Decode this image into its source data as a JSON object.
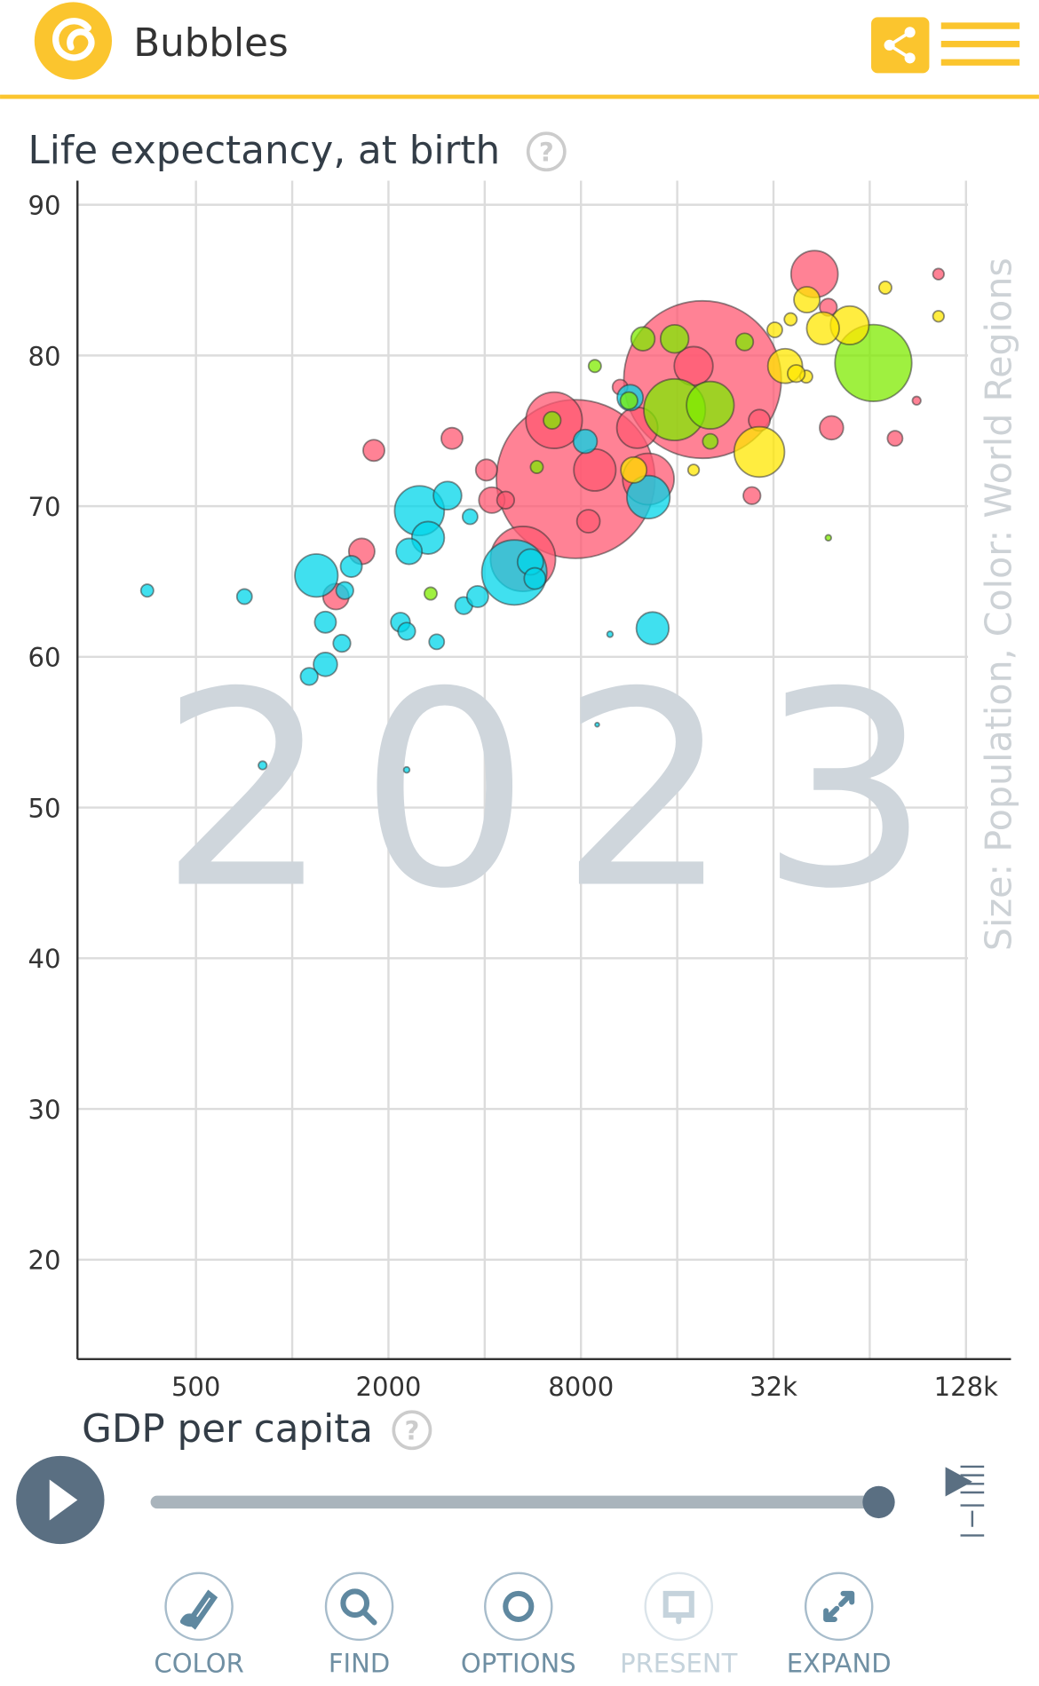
{
  "header": {
    "title": "Bubbles"
  },
  "chart_data": {
    "type": "bubble",
    "y_label": "Life expectancy, at birth",
    "x_label": "GDP per capita",
    "size_color_label": "Size: Population, Color: World Regions",
    "year": 2023,
    "x_scale": "log",
    "xlim": [
      213,
      177000
    ],
    "ylim": [
      13.4,
      91.6
    ],
    "xticks": [
      500,
      2000,
      8000,
      {
        "value": 32000,
        "label": "32k"
      },
      {
        "value": 128000,
        "label": "128k"
      }
    ],
    "xgrid_minor": [
      1000,
      4000,
      16000,
      64000
    ],
    "yticks": [
      20,
      30,
      40,
      50,
      60,
      70,
      80,
      90
    ],
    "grid": true,
    "x": [
      7700,
      19200,
      6590,
      5270,
      43000,
      8440,
      8840,
      12000,
      13000,
      18000,
      4050,
      4210,
      4650,
      1800,
      3160,
      1650,
      1370,
      27400,
      28900,
      48600,
      76800,
      105000,
      89700,
      47500,
      10600,
      4950,
      1190,
      2500,
      1270,
      1270,
      1130,
      1430,
      1530,
      1460,
      2660,
      3060,
      2320,
      2180,
      2280,
      2830,
      3440,
      3800,
      3600,
      5560,
      5740,
      8250,
      13000,
      13400,
      352,
      709,
      808,
      2280,
      8990,
      9860,
      11400,
      65700,
      15700,
      20300,
      12500,
      15700,
      26000,
      11300,
      8840,
      2710,
      6500,
      5820,
      47500,
      20300,
      28900,
      55400,
      34800,
      40700,
      45700,
      11700,
      32300,
      36200,
      71600,
      105000,
      18000,
      40500,
      37700
    ],
    "values": [
      71.8,
      78.4,
      75.7,
      66.5,
      85.4,
      69.0,
      72.4,
      75.2,
      71.8,
      79.3,
      72.4,
      70.4,
      70.4,
      73.7,
      74.5,
      67.0,
      64.0,
      70.7,
      75.7,
      75.2,
      74.5,
      85.4,
      77.0,
      83.2,
      77.9,
      65.6,
      65.4,
      69.7,
      62.3,
      59.5,
      58.7,
      60.9,
      66.0,
      64.4,
      67.9,
      70.7,
      67.0,
      62.3,
      61.7,
      61.0,
      63.4,
      64.0,
      69.3,
      66.3,
      65.2,
      74.3,
      70.6,
      61.9,
      64.4,
      64.0,
      52.8,
      52.5,
      55.5,
      61.5,
      77.2,
      79.5,
      76.4,
      76.7,
      81.1,
      81.1,
      80.9,
      77.0,
      79.3,
      64.2,
      75.7,
      72.6,
      67.9,
      74.3,
      73.6,
      82.0,
      79.3,
      83.7,
      81.8,
      72.4,
      81.7,
      82.4,
      84.5,
      82.6,
      72.4,
      78.6,
      78.8
    ],
    "sizes": [
      1430,
      1410,
      180,
      240,
      125,
      30,
      100,
      95,
      150,
      85,
      26,
      38,
      17,
      26,
      26,
      38,
      38,
      17,
      26,
      32,
      13,
      7,
      4,
      17,
      13,
      240,
      105,
      140,
      26,
      32,
      17,
      17,
      26,
      17,
      60,
      45,
      38,
      21,
      17,
      13,
      17,
      26,
      13,
      38,
      26,
      32,
      105,
      60,
      9,
      13,
      4,
      2,
      1,
      2,
      38,
      335,
      215,
      128,
      32,
      45,
      17,
      17,
      9,
      9,
      17,
      9,
      2,
      13,
      144,
      84,
      68,
      38,
      60,
      38,
      13,
      9,
      9,
      7,
      7,
      9,
      17
    ],
    "colors": [
      "#ff5872",
      "#ff5872",
      "#ff5872",
      "#ff5872",
      "#ff5872",
      "#ff5872",
      "#ff5872",
      "#ff5872",
      "#ff5872",
      "#ff5872",
      "#ff5872",
      "#ff5872",
      "#ff5872",
      "#ff5872",
      "#ff5872",
      "#ff5872",
      "#ff5872",
      "#ff5872",
      "#ff5872",
      "#ff5872",
      "#ff5872",
      "#ff5872",
      "#ff5872",
      "#ff5872",
      "#ff5872",
      "#00d5e9",
      "#00d5e9",
      "#00d5e9",
      "#00d5e9",
      "#00d5e9",
      "#00d5e9",
      "#00d5e9",
      "#00d5e9",
      "#00d5e9",
      "#00d5e9",
      "#00d5e9",
      "#00d5e9",
      "#00d5e9",
      "#00d5e9",
      "#00d5e9",
      "#00d5e9",
      "#00d5e9",
      "#00d5e9",
      "#00d5e9",
      "#00d5e9",
      "#00d5e9",
      "#00d5e9",
      "#00d5e9",
      "#00d5e9",
      "#00d5e9",
      "#00d5e9",
      "#00d5e9",
      "#00d5e9",
      "#00d5e9",
      "#00d5e9",
      "#7feb00",
      "#7feb00",
      "#7feb00",
      "#7feb00",
      "#7feb00",
      "#7feb00",
      "#7feb00",
      "#7feb00",
      "#7feb00",
      "#7feb00",
      "#7feb00",
      "#7feb00",
      "#7feb00",
      "#ffe700",
      "#ffe700",
      "#ffe700",
      "#ffe700",
      "#ffe700",
      "#ffe700",
      "#ffe700",
      "#ffe700",
      "#ffe700",
      "#ffe700",
      "#ffe700",
      "#ffe700",
      "#ffe700"
    ]
  },
  "controls": {
    "buttons": [
      "COLOR",
      "FIND",
      "OPTIONS",
      "PRESENT",
      "EXPAND"
    ]
  }
}
